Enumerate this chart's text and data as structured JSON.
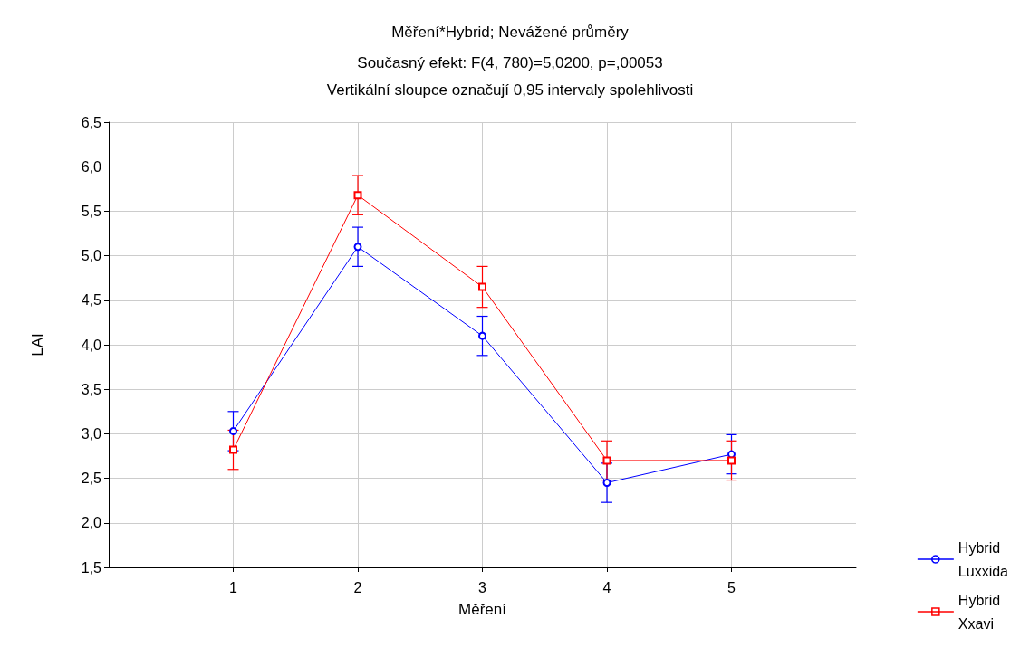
{
  "chart_data": {
    "type": "line",
    "title": "Měření*Hybrid; Nevážené průměry",
    "subtitle": "Současný efekt: F(4, 780)=5,0200, p=,00053",
    "annotations": [
      "Vertikální sloupce označují 0,95 intervaly spolehlivosti"
    ],
    "xlabel": "Měření",
    "ylabel": "LAI",
    "x": [
      1,
      2,
      3,
      4,
      5
    ],
    "xlim": [
      0,
      6
    ],
    "xticks": [
      1,
      2,
      3,
      4,
      5
    ],
    "ylim": [
      1.5,
      6.5
    ],
    "yticks": [
      {
        "value": 1.5,
        "label": "1,5"
      },
      {
        "value": 2,
        "label": "2,0"
      },
      {
        "value": 2.5,
        "label": "2,5"
      },
      {
        "value": 3,
        "label": "3,0"
      },
      {
        "value": 3.5,
        "label": "3,5"
      },
      {
        "value": 4,
        "label": "4,0"
      },
      {
        "value": 4.5,
        "label": "4,5"
      },
      {
        "value": 5,
        "label": "5,0"
      },
      {
        "value": 5.5,
        "label": "5,5"
      },
      {
        "value": 6,
        "label": "6,0"
      },
      {
        "value": 6.5,
        "label": "6,5"
      }
    ],
    "grid": true,
    "legend": "bottom right",
    "series": [
      {
        "name": "Hybrid Luxxida",
        "color": "#0000ff",
        "marker": "circle",
        "values": [
          3.03,
          5.1,
          4.1,
          2.45,
          2.77
        ],
        "errors": [
          0.22,
          0.22,
          0.22,
          0.22,
          0.22
        ]
      },
      {
        "name": "Hybrid Xxavi",
        "color": "#ff0000",
        "marker": "square",
        "values": [
          2.82,
          5.68,
          4.65,
          2.7,
          2.7
        ],
        "errors": [
          0.22,
          0.22,
          0.23,
          0.22,
          0.22
        ]
      }
    ]
  }
}
